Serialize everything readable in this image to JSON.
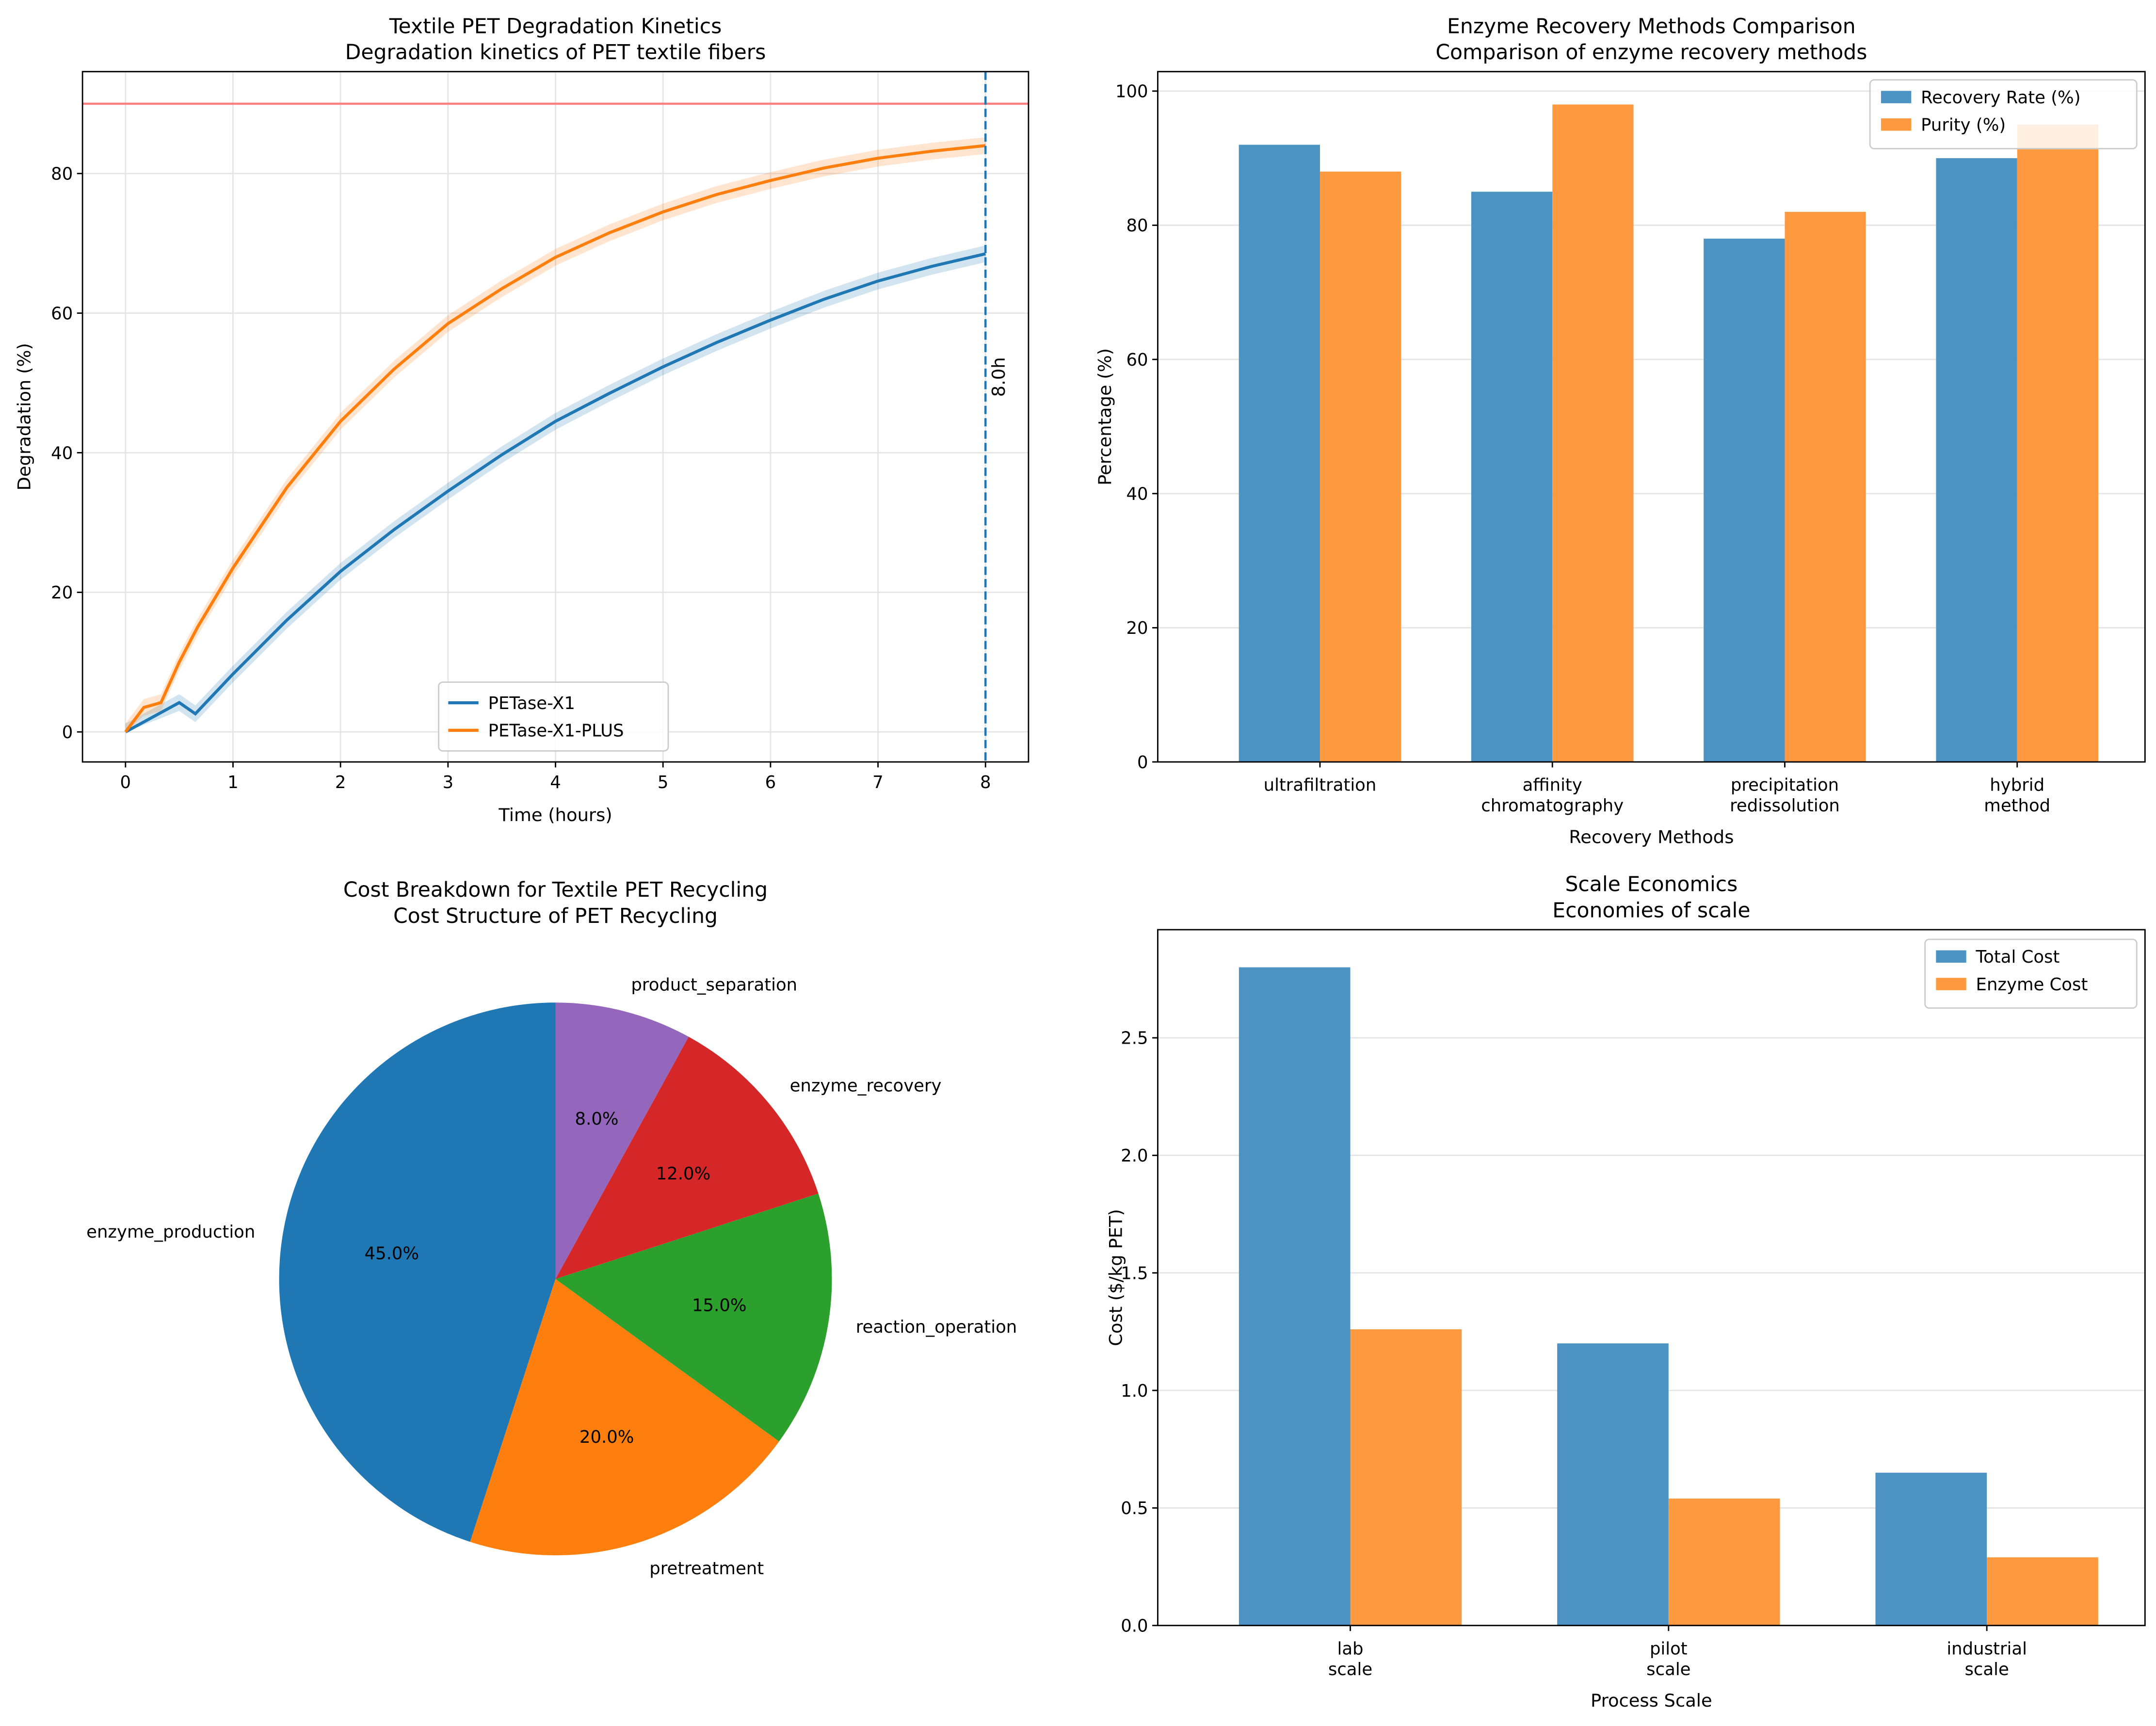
{
  "chart_data": [
    {
      "type": "line",
      "title": "Textile PET Degradation Kinetics",
      "subtitle": "Degradation kinetics of PET textile fibers",
      "xlabel": "Time (hours)",
      "ylabel": "Degradation (%)",
      "xlim": [
        -0.4,
        8.4
      ],
      "ylim": [
        -4.3,
        94.6
      ],
      "xticks": [
        "0",
        "1",
        "2",
        "3",
        "4",
        "5",
        "6",
        "7",
        "8"
      ],
      "yticks": [
        "0",
        "20",
        "40",
        "60",
        "80"
      ],
      "grid": true,
      "legend_position": "lower-center",
      "threshold_line": {
        "y": 90,
        "color": "#ff7f7f"
      },
      "marker_line": {
        "x": 8,
        "label": "8.0h",
        "color": "#1f77b4"
      },
      "series": [
        {
          "name": "PETase-X1",
          "color": "#1f77b4",
          "x": [
            0,
            0.5,
            0.65,
            1,
            1.5,
            2,
            2.5,
            3,
            3.5,
            4,
            4.5,
            5,
            5.5,
            6,
            6.5,
            7,
            7.5,
            8
          ],
          "y": [
            0,
            4.2,
            2.6,
            8.3,
            16,
            23,
            29,
            34.5,
            39.7,
            44.5,
            48.5,
            52.3,
            55.8,
            59,
            62,
            64.6,
            66.7,
            68.5
          ]
        },
        {
          "name": "PETase-X1-PLUS",
          "color": "#ff7f0e",
          "x": [
            0,
            0.17,
            0.33,
            0.5,
            0.67,
            1,
            1.5,
            2,
            2.5,
            3,
            3.5,
            4,
            4.5,
            5,
            5.5,
            6,
            6.5,
            7,
            7.5,
            8
          ],
          "y": [
            0,
            3.5,
            4.2,
            10,
            15,
            23.5,
            35,
            44.5,
            52,
            58.5,
            63.5,
            68,
            71.5,
            74.5,
            77,
            79,
            80.8,
            82.2,
            83.2,
            84
          ]
        }
      ]
    },
    {
      "type": "bar",
      "title": "Enzyme Recovery Methods Comparison",
      "subtitle": "Comparison of enzyme recovery methods",
      "xlabel": "Recovery Methods",
      "ylabel": "Percentage (%)",
      "ylim": [
        0,
        102.9
      ],
      "yticks": [
        "0",
        "20",
        "40",
        "60",
        "80",
        "100"
      ],
      "categories": [
        [
          "ultrafiltration"
        ],
        [
          "affinity",
          "chromatography"
        ],
        [
          "precipitation",
          "redissolution"
        ],
        [
          "hybrid",
          "method"
        ]
      ],
      "legend_position": "top-right",
      "series": [
        {
          "name": "Recovery Rate (%)",
          "color": "#4c93c3",
          "values": [
            92,
            85,
            78,
            90
          ]
        },
        {
          "name": "Purity (%)",
          "color": "#ff993f",
          "values": [
            88,
            98,
            82,
            95
          ]
        }
      ]
    },
    {
      "type": "pie",
      "title": "Cost Breakdown for Textile PET Recycling",
      "subtitle": "Cost Structure of PET Recycling",
      "start_angle": 90,
      "labels": [
        "enzyme_production",
        "pretreatment",
        "reaction_operation",
        "enzyme_recovery",
        "product_separation"
      ],
      "values": [
        45,
        20,
        15,
        12,
        8
      ],
      "pct_labels": [
        "45.0%",
        "20.0%",
        "15.0%",
        "12.0%",
        "8.0%"
      ],
      "colors": [
        "#1f77b4",
        "#ff7f0e",
        "#2ca02c",
        "#d62728",
        "#9467bd"
      ]
    },
    {
      "type": "bar",
      "title": "Scale Economics",
      "subtitle": "Economies of scale",
      "xlabel": "Process Scale",
      "ylabel": "Cost ($/kg PET)",
      "ylim": [
        0,
        2.96
      ],
      "yticks": [
        "0.0",
        "0.5",
        "1.0",
        "1.5",
        "2.0",
        "2.5"
      ],
      "categories": [
        [
          "lab",
          "scale"
        ],
        [
          "pilot",
          "scale"
        ],
        [
          "industrial",
          "scale"
        ]
      ],
      "legend_position": "top-right",
      "series": [
        {
          "name": "Total Cost",
          "color": "#4c93c3",
          "values": [
            2.8,
            1.2,
            0.65
          ]
        },
        {
          "name": "Enzyme Cost",
          "color": "#ff993f",
          "values": [
            1.26,
            0.54,
            0.29
          ]
        }
      ]
    }
  ]
}
